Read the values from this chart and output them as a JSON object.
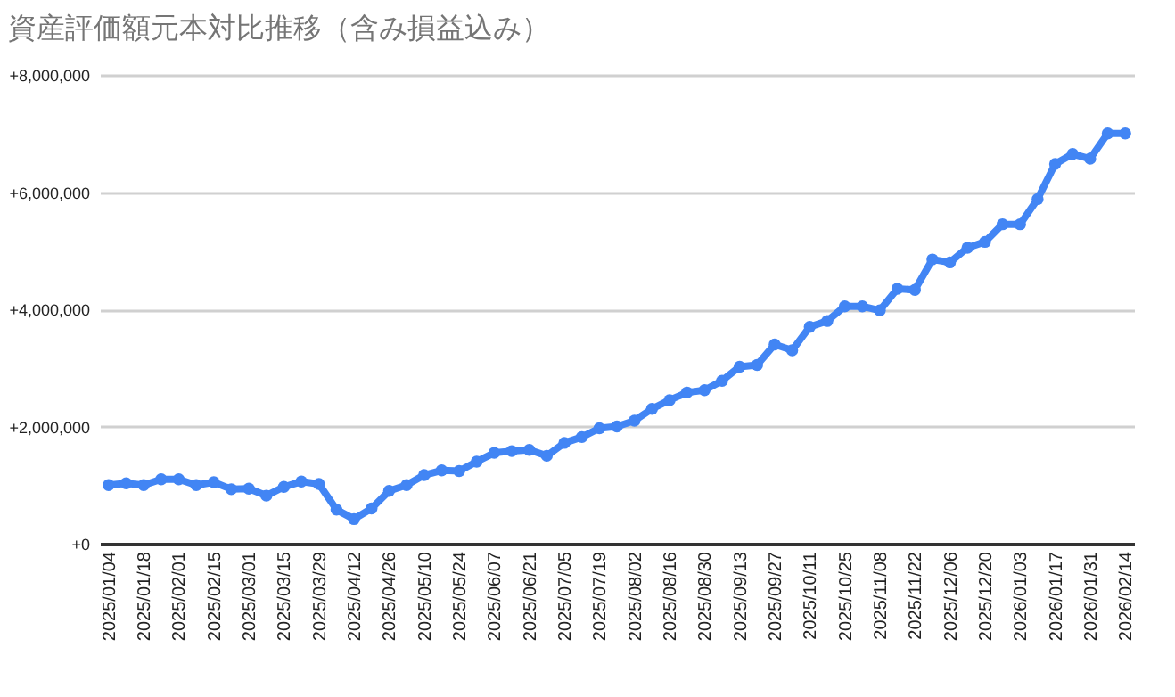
{
  "chart_data": {
    "type": "line",
    "title": "資産評価額元本対比推移（含み損益込み）",
    "categories": [
      "2025/01/04",
      null,
      "2025/01/18",
      null,
      "2025/02/01",
      null,
      "2025/02/15",
      null,
      "2025/03/01",
      null,
      "2025/03/15",
      null,
      "2025/03/29",
      null,
      "2025/04/12",
      null,
      "2025/04/26",
      null,
      "2025/05/10",
      null,
      "2025/05/24",
      null,
      "2025/06/07",
      null,
      "2025/06/21",
      null,
      "2025/07/05",
      null,
      "2025/07/19",
      null,
      "2025/08/02",
      null,
      "2025/08/16",
      null,
      "2025/08/30",
      null,
      "2025/09/13",
      null,
      "2025/09/27",
      null,
      "2025/10/11",
      null,
      "2025/10/25",
      null,
      "2025/11/08",
      null,
      "2025/11/22",
      null,
      "2025/12/06",
      null,
      "2025/12/20",
      null,
      "2026/01/03",
      null,
      "2026/01/17",
      null,
      "2026/01/31",
      null,
      "2026/02/14"
    ],
    "series": [
      {
        "color": "#4285f4",
        "values": [
          1000000,
          1030000,
          1000000,
          1100000,
          1100000,
          1000000,
          1050000,
          930000,
          940000,
          820000,
          970000,
          1060000,
          1020000,
          580000,
          420000,
          600000,
          900000,
          1000000,
          1170000,
          1250000,
          1240000,
          1400000,
          1550000,
          1580000,
          1600000,
          1500000,
          1720000,
          1820000,
          1970000,
          2000000,
          2100000,
          2300000,
          2450000,
          2580000,
          2620000,
          2780000,
          3020000,
          3050000,
          3400000,
          3300000,
          3700000,
          3800000,
          4050000,
          4050000,
          3980000,
          4350000,
          4330000,
          4850000,
          4800000,
          5050000,
          5150000,
          5450000,
          5450000,
          5880000,
          6480000,
          6650000,
          6570000,
          7000000,
          7000000
        ]
      }
    ],
    "ylim": [
      0,
      8000000
    ],
    "yticks": [
      {
        "value": 0,
        "label": "+0"
      },
      {
        "value": 2000000,
        "label": "+2,000,000"
      },
      {
        "value": 4000000,
        "label": "+4,000,000"
      },
      {
        "value": 6000000,
        "label": "+6,000,000"
      },
      {
        "value": 8000000,
        "label": "+8,000,000"
      }
    ],
    "grid": "y",
    "marker": "circle",
    "line_style": "solid",
    "legend": false
  }
}
